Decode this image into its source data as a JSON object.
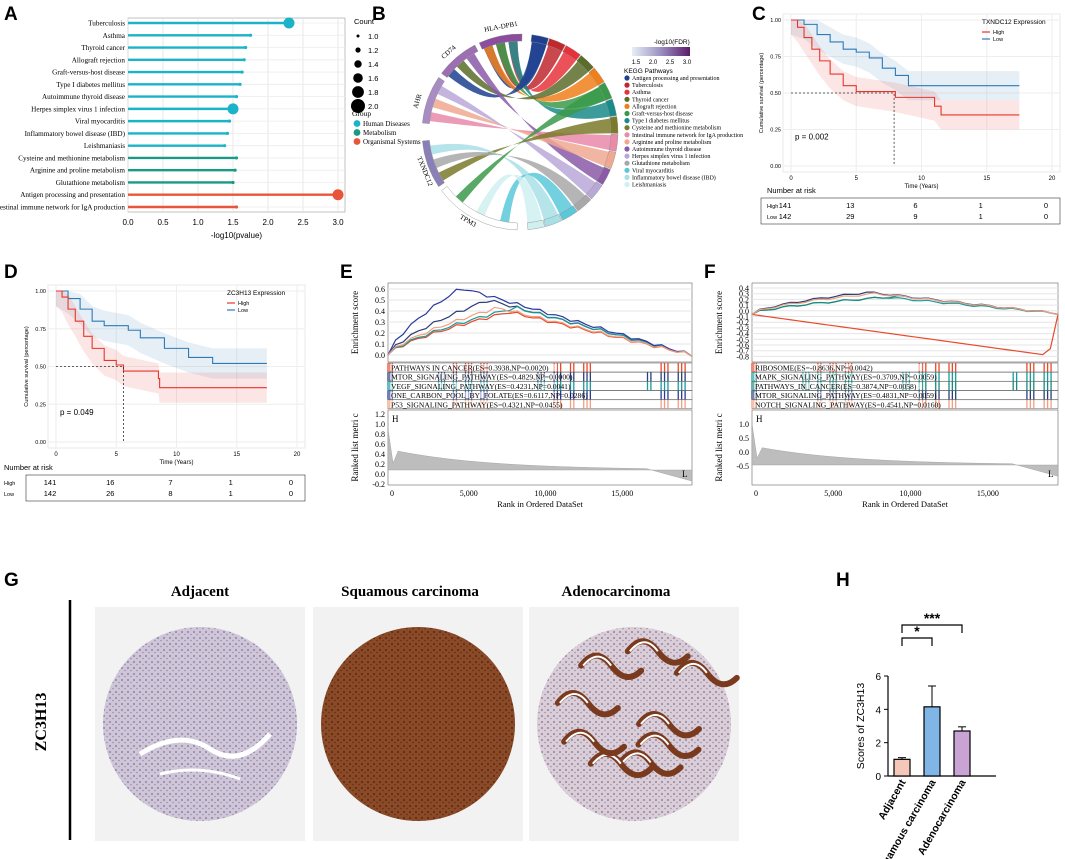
{
  "panel_labels": {
    "A": "A",
    "B": "B",
    "C": "C",
    "D": "D",
    "E": "E",
    "F": "F",
    "G": "G",
    "H": "H"
  },
  "chart_data": [
    {
      "id": "A",
      "type": "lollipop",
      "xlabel": "-log10(pvalue)",
      "xlim": [
        0,
        3.1
      ],
      "xticks": [
        "0.0",
        "0.5",
        "1.0",
        "1.5",
        "2.0",
        "2.5",
        "3.0"
      ],
      "categories": [
        "Tuberculosis",
        "Asthma",
        "Thyroid cancer",
        "Allograft rejection",
        "Graft-versus-host disease",
        "Type I diabetes mellitus",
        "Autoimmune thyroid disease",
        "Herpes simplex virus 1 infection",
        "Viral myocarditis",
        "Inflammatory bowel disease (IBD)",
        "Leishmaniasis",
        "Cysteine and methionine metabolism",
        "Arginine and proline metabolism",
        "Glutathione metabolism",
        "Antigen processing and presentation",
        "Intestinal immune network for IgA production"
      ],
      "values": [
        2.3,
        1.75,
        1.68,
        1.66,
        1.63,
        1.6,
        1.55,
        1.5,
        1.45,
        1.42,
        1.38,
        1.55,
        1.53,
        1.5,
        3.0,
        1.55
      ],
      "counts": [
        2,
        1,
        1,
        1,
        1,
        1,
        1,
        2,
        1,
        1,
        1,
        1,
        1,
        1,
        2,
        1
      ],
      "groups": [
        "Human Diseases",
        "Human Diseases",
        "Human Diseases",
        "Human Diseases",
        "Human Diseases",
        "Human Diseases",
        "Human Diseases",
        "Human Diseases",
        "Human Diseases",
        "Human Diseases",
        "Human Diseases",
        "Metabolism",
        "Metabolism",
        "Metabolism",
        "Organismal Systems",
        "Organismal Systems"
      ],
      "legend_count_title": "Count",
      "legend_count_values": [
        "1.0",
        "1.2",
        "1.4",
        "1.6",
        "1.8",
        "2.0"
      ],
      "legend_group_title": "Group",
      "legend_groups": [
        {
          "name": "Human Diseases",
          "color": "#1ab3c8"
        },
        {
          "name": "Metabolism",
          "color": "#1a9a82"
        },
        {
          "name": "Organismal Systems",
          "color": "#e8553a"
        }
      ]
    },
    {
      "id": "B",
      "type": "chord",
      "genes": [
        "HLA-DPB1",
        "CD74",
        "AHR",
        "TXNDC12",
        "TPM3"
      ],
      "gene_colors": [
        "#8b5a9e",
        "#9a6aa8",
        "#8f7ab5",
        "#7a8ab5",
        "#ffffff"
      ],
      "colorbar_title": "-log10(FDR)",
      "colorbar_ticks": [
        "1.5",
        "2.0",
        "2.5",
        "3.0"
      ],
      "legend_title": "KEGG Pathways",
      "pathways": [
        {
          "name": "Antigen processing and presentation",
          "color": "#1f3f8f"
        },
        {
          "name": "Tuberculosis",
          "color": "#c0282e"
        },
        {
          "name": "Asthma",
          "color": "#e8323b"
        },
        {
          "name": "Thyroid cancer",
          "color": "#5a6d2a"
        },
        {
          "name": "Allograft rejection",
          "color": "#f07f1a"
        },
        {
          "name": "Graft-versus-host disease",
          "color": "#3a9a4a"
        },
        {
          "name": "Type I diabetes mellitus",
          "color": "#1a8a8a"
        },
        {
          "name": "Cysteine and methionine metabolism",
          "color": "#7a7a2a"
        },
        {
          "name": "Intestinal immune network for IgA production",
          "color": "#e88aa8"
        },
        {
          "name": "Arginine and proline metabolism",
          "color": "#f0a890"
        },
        {
          "name": "Autoimmune thyroid disease",
          "color": "#8a5aa8"
        },
        {
          "name": "Herpes simplex virus 1 infection",
          "color": "#b8a8d8"
        },
        {
          "name": "Glutathione metabolism",
          "color": "#a8a8a8"
        },
        {
          "name": "Viral myocarditis",
          "color": "#5ac8d8"
        },
        {
          "name": "Inflammatory bowel disease (IBD)",
          "color": "#a8e0e8"
        },
        {
          "name": "Leishmaniasis",
          "color": "#d0f0f0"
        }
      ]
    },
    {
      "id": "C",
      "type": "km",
      "legend_title": "TXNDC12 Expression",
      "series": [
        {
          "name": "High",
          "color": "#e8352b"
        },
        {
          "name": "Low",
          "color": "#2e7ab8"
        }
      ],
      "ylabel": "Cumulative survival (percentage)",
      "xlabel": "Time (Years)",
      "xticks": [
        "0",
        "5",
        "10",
        "15",
        "20"
      ],
      "yticks": [
        "0.00",
        "0.25",
        "0.50",
        "0.75",
        "1.00"
      ],
      "pvalue": "p = 0.002",
      "risk_title": "Number at risk",
      "risk_table": [
        {
          "name": "High",
          "values": [
            "141",
            "13",
            "6",
            "1",
            "0"
          ]
        },
        {
          "name": "Low",
          "values": [
            "142",
            "29",
            "9",
            "1",
            "0"
          ]
        }
      ]
    },
    {
      "id": "D",
      "type": "km",
      "legend_title": "ZC3H13 Expression",
      "series": [
        {
          "name": "High",
          "color": "#e8352b"
        },
        {
          "name": "Low",
          "color": "#2e7ab8"
        }
      ],
      "ylabel": "Cumulative survival (percentage)",
      "xlabel": "Time (Years)",
      "xticks": [
        "0",
        "5",
        "10",
        "15",
        "20"
      ],
      "yticks": [
        "0.00",
        "0.25",
        "0.50",
        "0.75",
        "1.00"
      ],
      "pvalue": "p = 0.049",
      "risk_title": "Number at risk",
      "risk_table": [
        {
          "name": "High",
          "values": [
            "141",
            "16",
            "7",
            "1",
            "0"
          ]
        },
        {
          "name": "Low",
          "values": [
            "142",
            "26",
            "8",
            "1",
            "0"
          ]
        }
      ]
    },
    {
      "id": "E",
      "type": "gsea",
      "ylabel_top": "Enrichment score",
      "yticks_top": [
        "0.0",
        "0.1",
        "0.2",
        "0.3",
        "0.4",
        "0.5",
        "0.6"
      ],
      "ylabel_bottom": "Ranked list metri c",
      "yticks_bottom": [
        "1.2",
        "1.0",
        "0.8",
        "0.6",
        "0.4",
        "0.2",
        "0.0",
        "-0.2"
      ],
      "xlabel": "Rank in Ordered DataSet",
      "xticks": [
        "0",
        "5,000",
        "10,000",
        "15,000"
      ],
      "end_h": "H",
      "end_l": "L",
      "pathways": [
        {
          "label": "PATHWAYS IN CANCER(ES=0.3938,NP=0.0020)",
          "color": "#e84a2a"
        },
        {
          "label": "MTOR_SIGNALING_PATHWAY(ES=0.4829,NP=0.0000)",
          "color": "#2a3f7a"
        },
        {
          "label": "VEGF_SIGNALING_PATHWAY(ES=0.4231,NP=0.0041)",
          "color": "#1a9a9a"
        },
        {
          "label": "ONE_CARBON_POOL_BY_FOLATE(ES=0.6117,NP=0.0286)",
          "color": "#2a3a9a"
        },
        {
          "label": "P53_SIGNALING_PATHWAY(ES=0.4321,NP=0.0455)",
          "color": "#f0a080"
        }
      ]
    },
    {
      "id": "F",
      "type": "gsea",
      "ylabel_top": "Enrichment score",
      "yticks_top": [
        "0.4",
        "0.3",
        "0.2",
        "0.1",
        "0.0",
        "-0.1",
        "-0.2",
        "-0.3",
        "-0.4",
        "-0.5",
        "-0.6",
        "-0.7",
        "-0.8"
      ],
      "ylabel_bottom": "Ranked list metri c",
      "yticks_bottom": [
        "1.0",
        "0.5",
        "0.0",
        "-0.5"
      ],
      "xlabel": "Rank in Ordered DataSet",
      "xticks": [
        "0",
        "5,000",
        "10,000",
        "15,000"
      ],
      "end_h": "H",
      "end_l": "L",
      "pathways": [
        {
          "label": "RIBOSOME(ES=-0.8636,NP=0.0042)",
          "color": "#e84a2a"
        },
        {
          "label": "MAPK_SIGNALING_PATHWAY(ES=0.3709,NP=0.0059)",
          "color": "#1a9a9a"
        },
        {
          "label": "PATHWAYS_IN_CANCER(ES=0.3874,NP=0.0058)",
          "color": "#1a8a7a"
        },
        {
          "label": "MTOR_SIGNALING_PATHWAY(ES=0.4831,NP=0.0059)",
          "color": "#2a3f7a"
        },
        {
          "label": "NOTCH_SIGNALING_PATHWAY(ES=0.4541,NP=0.0160)",
          "color": "#f0a080"
        }
      ]
    },
    {
      "id": "G",
      "type": "image_panel",
      "row_label": "ZC3H13",
      "columns": [
        "Adjacent",
        "Squamous carcinoma",
        "Adenocarcinoma"
      ]
    },
    {
      "id": "H",
      "type": "bar",
      "categories": [
        "Adjacent",
        "Squamous carcinoma",
        "Adenocarcinoma"
      ],
      "values": [
        1.0,
        4.15,
        2.7
      ],
      "errors": [
        0.1,
        1.25,
        0.25
      ],
      "colors": [
        "#f5c7b8",
        "#7fb6e6",
        "#c9a3d4"
      ],
      "ylabel": "Scores of ZC3H13",
      "ylim": [
        0,
        6
      ],
      "yticks": [
        "0",
        "2",
        "4",
        "6"
      ],
      "significance": [
        {
          "pair": [
            0,
            1
          ],
          "label": "*"
        },
        {
          "pair": [
            0,
            2
          ],
          "label": "***"
        }
      ]
    }
  ]
}
